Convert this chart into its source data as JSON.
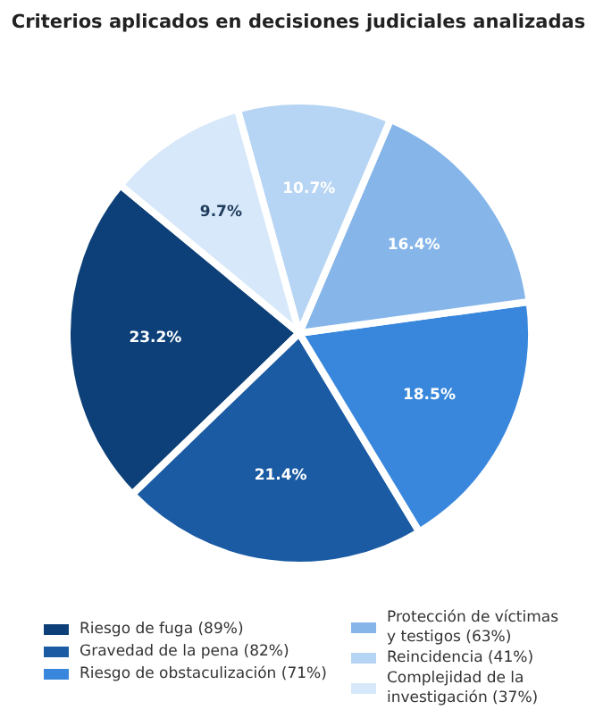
{
  "chart_data": {
    "type": "pie",
    "title": "Criterios aplicados en decisiones judiciales analizadas",
    "categories": [
      "Riesgo de fuga  (89%)",
      "Gravedad de la pena  (82%)",
      "Riesgo de obstaculización  (71%)",
      "Protección de víctimas y testigos  (63%)",
      "Reincidencia  (41%)",
      "Complejidad de la investigación  (37%)"
    ],
    "values": [
      23.2,
      21.4,
      18.5,
      16.4,
      10.7,
      9.7
    ],
    "value_labels": [
      "23.2%",
      "21.4%",
      "18.5%",
      "16.4%",
      "10.7%",
      "9.7%"
    ],
    "colors": [
      "#0d4078",
      "#1a5ba3",
      "#3887dc",
      "#85b5e9",
      "#b6d4f3",
      "#d6e8f9"
    ],
    "legend": "bottom"
  }
}
